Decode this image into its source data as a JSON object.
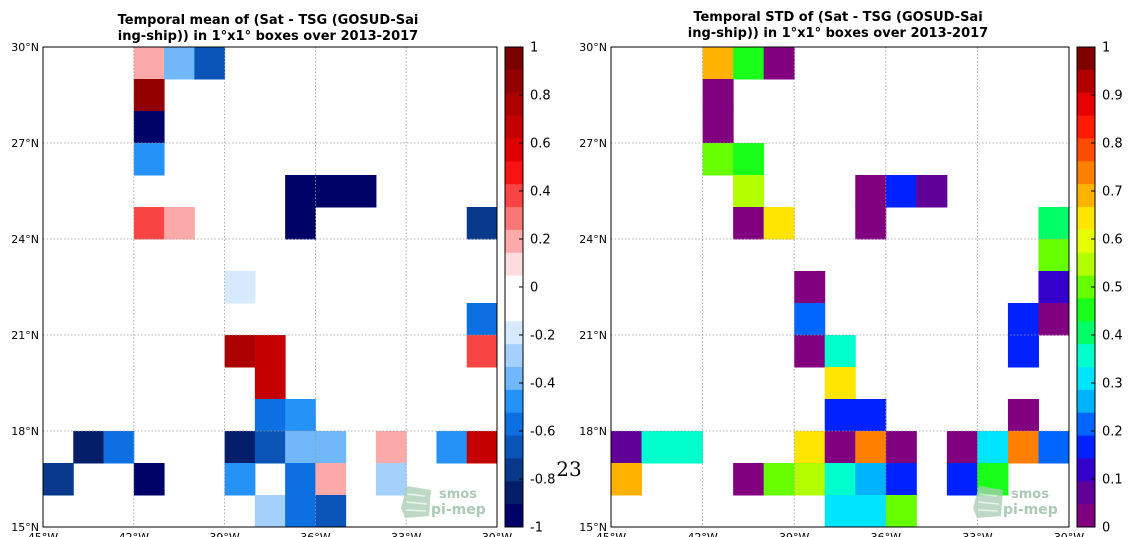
{
  "page_number": "23",
  "logo": {
    "line1": "smos",
    "line2": "pi-mep"
  },
  "chart_data": [
    {
      "type": "heatmap",
      "title_lines": [
        "Temporal mean of (Sat - TSG (GOSUD-Sai",
        "ing-ship)) in 1°x1° boxes over 2013-2017"
      ],
      "x_ticks": [
        "45°W",
        "42°W",
        "39°W",
        "36°W",
        "33°W",
        "30°W"
      ],
      "y_ticks": [
        "15°N",
        "18°N",
        "21°N",
        "24°N",
        "27°N",
        "30°N"
      ],
      "xlim_lon": [
        -45,
        -30
      ],
      "ylim_lat": [
        15,
        30
      ],
      "grid": true,
      "colorbar": {
        "ticks": [
          "1",
          "0.8",
          "0.6",
          "0.4",
          "0.2",
          "0",
          "-0.2",
          "-0.4",
          "-0.6",
          "-0.8",
          "-1"
        ],
        "range": [
          -1,
          1
        ],
        "levels": 20,
        "colors_top_to_bottom": [
          "#7a0000",
          "#930000",
          "#ac0000",
          "#c50000",
          "#de0000",
          "#f81212",
          "#f94444",
          "#fa7777",
          "#fba9a9",
          "#fcdcdc",
          "#ffffff",
          "#ffffff",
          "#d6e9fd",
          "#a4d0fc",
          "#71b8fa",
          "#2492f7",
          "#0c70e2",
          "#0a55b7",
          "#08398b",
          "#041e6a",
          "#000268"
        ]
      },
      "cells": [
        {
          "lon": -42,
          "lat": 29,
          "value": 0.15
        },
        {
          "lon": -41,
          "lat": 29,
          "value": -0.35
        },
        {
          "lon": -40,
          "lat": 29,
          "value": -0.65
        },
        {
          "lon": -42,
          "lat": 28,
          "value": 0.85
        },
        {
          "lon": -42,
          "lat": 27,
          "value": -0.95
        },
        {
          "lon": -42,
          "lat": 26,
          "value": -0.45
        },
        {
          "lon": -37,
          "lat": 25,
          "value": -0.95
        },
        {
          "lon": -36,
          "lat": 25,
          "value": -0.95
        },
        {
          "lon": -35,
          "lat": 25,
          "value": -0.95
        },
        {
          "lon": -37,
          "lat": 24,
          "value": -0.95
        },
        {
          "lon": -42,
          "lat": 24,
          "value": 0.35
        },
        {
          "lon": -41,
          "lat": 24,
          "value": 0.15
        },
        {
          "lon": -31,
          "lat": 24,
          "value": -0.75
        },
        {
          "lon": -39,
          "lat": 22,
          "value": -0.15
        },
        {
          "lon": -31,
          "lat": 21,
          "value": -0.55
        },
        {
          "lon": -39,
          "lat": 20,
          "value": 0.75
        },
        {
          "lon": -38,
          "lat": 20,
          "value": 0.65
        },
        {
          "lon": -31,
          "lat": 20,
          "value": 0.35
        },
        {
          "lon": -38,
          "lat": 19,
          "value": 0.65
        },
        {
          "lon": -38,
          "lat": 18,
          "value": -0.55
        },
        {
          "lon": -37,
          "lat": 18,
          "value": -0.45
        },
        {
          "lon": -44,
          "lat": 17,
          "value": -0.85
        },
        {
          "lon": -43,
          "lat": 17,
          "value": -0.55
        },
        {
          "lon": -39,
          "lat": 17,
          "value": -0.85
        },
        {
          "lon": -38,
          "lat": 17,
          "value": -0.65
        },
        {
          "lon": -37,
          "lat": 17,
          "value": -0.35
        },
        {
          "lon": -36,
          "lat": 17,
          "value": -0.35
        },
        {
          "lon": -34,
          "lat": 17,
          "value": 0.15
        },
        {
          "lon": -32,
          "lat": 17,
          "value": -0.45
        },
        {
          "lon": -31,
          "lat": 17,
          "value": 0.65
        },
        {
          "lon": -45,
          "lat": 16,
          "value": -0.75
        },
        {
          "lon": -42,
          "lat": 16,
          "value": -0.95
        },
        {
          "lon": -39,
          "lat": 16,
          "value": -0.45
        },
        {
          "lon": -37,
          "lat": 16,
          "value": -0.55
        },
        {
          "lon": -36,
          "lat": 16,
          "value": 0.15
        },
        {
          "lon": -34,
          "lat": 16,
          "value": -0.25
        },
        {
          "lon": -38,
          "lat": 15,
          "value": -0.25
        },
        {
          "lon": -37,
          "lat": 15,
          "value": -0.55
        },
        {
          "lon": -36,
          "lat": 15,
          "value": -0.65
        }
      ]
    },
    {
      "type": "heatmap",
      "title_lines": [
        "Temporal STD of (Sat - TSG (GOSUD-Sai",
        "ing-ship)) in 1°x1° boxes over 2013-2017"
      ],
      "x_ticks": [
        "45°W",
        "42°W",
        "39°W",
        "36°W",
        "33°W",
        "30°W"
      ],
      "y_ticks": [
        "15°N",
        "18°N",
        "21°N",
        "24°N",
        "27°N",
        "30°N"
      ],
      "xlim_lon": [
        -45,
        -30
      ],
      "ylim_lat": [
        15,
        30
      ],
      "grid": true,
      "colorbar": {
        "ticks": [
          "1",
          "0.9",
          "0.8",
          "0.7",
          "0.6",
          "0.5",
          "0.4",
          "0.3",
          "0.2",
          "0.1",
          "0"
        ],
        "range": [
          0,
          1
        ],
        "levels": 20,
        "colors_top_to_bottom": [
          "#800000",
          "#b20000",
          "#e60000",
          "#ff1a00",
          "#ff4d00",
          "#ff8000",
          "#ffb300",
          "#ffe500",
          "#e6ff00",
          "#b3ff00",
          "#66ff00",
          "#1aff1a",
          "#00ff66",
          "#00ffcc",
          "#00e5ff",
          "#00b3ff",
          "#0066ff",
          "#0022ff",
          "#3300cc",
          "#600099",
          "#800080"
        ]
      },
      "cells": [
        {
          "lon": -42,
          "lat": 29,
          "value": 0.68
        },
        {
          "lon": -41,
          "lat": 29,
          "value": 0.47
        },
        {
          "lon": -40,
          "lat": 29,
          "value": 0.02
        },
        {
          "lon": -42,
          "lat": 28,
          "value": 0.02
        },
        {
          "lon": -42,
          "lat": 27,
          "value": 0.02
        },
        {
          "lon": -42,
          "lat": 26,
          "value": 0.52
        },
        {
          "lon": -41,
          "lat": 26,
          "value": 0.47
        },
        {
          "lon": -41,
          "lat": 25,
          "value": 0.57
        },
        {
          "lon": -37,
          "lat": 25,
          "value": 0.02
        },
        {
          "lon": -36,
          "lat": 25,
          "value": 0.17
        },
        {
          "lon": -35,
          "lat": 25,
          "value": 0.07
        },
        {
          "lon": -41,
          "lat": 24,
          "value": 0.02
        },
        {
          "lon": -40,
          "lat": 24,
          "value": 0.62
        },
        {
          "lon": -37,
          "lat": 24,
          "value": 0.02
        },
        {
          "lon": -31,
          "lat": 24,
          "value": 0.42
        },
        {
          "lon": -31,
          "lat": 23,
          "value": 0.52
        },
        {
          "lon": -31,
          "lat": 22,
          "value": 0.12
        },
        {
          "lon": -39,
          "lat": 22,
          "value": 0.02
        },
        {
          "lon": -39,
          "lat": 21,
          "value": 0.22
        },
        {
          "lon": -32,
          "lat": 21,
          "value": 0.17
        },
        {
          "lon": -31,
          "lat": 21,
          "value": 0.02
        },
        {
          "lon": -39,
          "lat": 20,
          "value": 0.02
        },
        {
          "lon": -38,
          "lat": 20,
          "value": 0.37
        },
        {
          "lon": -32,
          "lat": 20,
          "value": 0.17
        },
        {
          "lon": -38,
          "lat": 19,
          "value": 0.62
        },
        {
          "lon": -38,
          "lat": 18,
          "value": 0.17
        },
        {
          "lon": -37,
          "lat": 18,
          "value": 0.17
        },
        {
          "lon": -32,
          "lat": 18,
          "value": 0.02
        },
        {
          "lon": -45,
          "lat": 17,
          "value": 0.07
        },
        {
          "lon": -44,
          "lat": 17,
          "value": 0.37
        },
        {
          "lon": -43,
          "lat": 17,
          "value": 0.37
        },
        {
          "lon": -39,
          "lat": 17,
          "value": 0.62
        },
        {
          "lon": -38,
          "lat": 17,
          "value": 0.02
        },
        {
          "lon": -37,
          "lat": 17,
          "value": 0.72
        },
        {
          "lon": -36,
          "lat": 17,
          "value": 0.02
        },
        {
          "lon": -34,
          "lat": 17,
          "value": 0.02
        },
        {
          "lon": -33,
          "lat": 17,
          "value": 0.32
        },
        {
          "lon": -32,
          "lat": 17,
          "value": 0.72
        },
        {
          "lon": -31,
          "lat": 17,
          "value": 0.22
        },
        {
          "lon": -45,
          "lat": 16,
          "value": 0.67
        },
        {
          "lon": -41,
          "lat": 16,
          "value": 0.02
        },
        {
          "lon": -40,
          "lat": 16,
          "value": 0.52
        },
        {
          "lon": -39,
          "lat": 16,
          "value": 0.57
        },
        {
          "lon": -38,
          "lat": 16,
          "value": 0.37
        },
        {
          "lon": -37,
          "lat": 16,
          "value": 0.27
        },
        {
          "lon": -36,
          "lat": 16,
          "value": 0.17
        },
        {
          "lon": -34,
          "lat": 16,
          "value": 0.17
        },
        {
          "lon": -33,
          "lat": 16,
          "value": 0.47
        },
        {
          "lon": -38,
          "lat": 15,
          "value": 0.32
        },
        {
          "lon": -37,
          "lat": 15,
          "value": 0.32
        },
        {
          "lon": -36,
          "lat": 15,
          "value": 0.52
        }
      ]
    }
  ]
}
